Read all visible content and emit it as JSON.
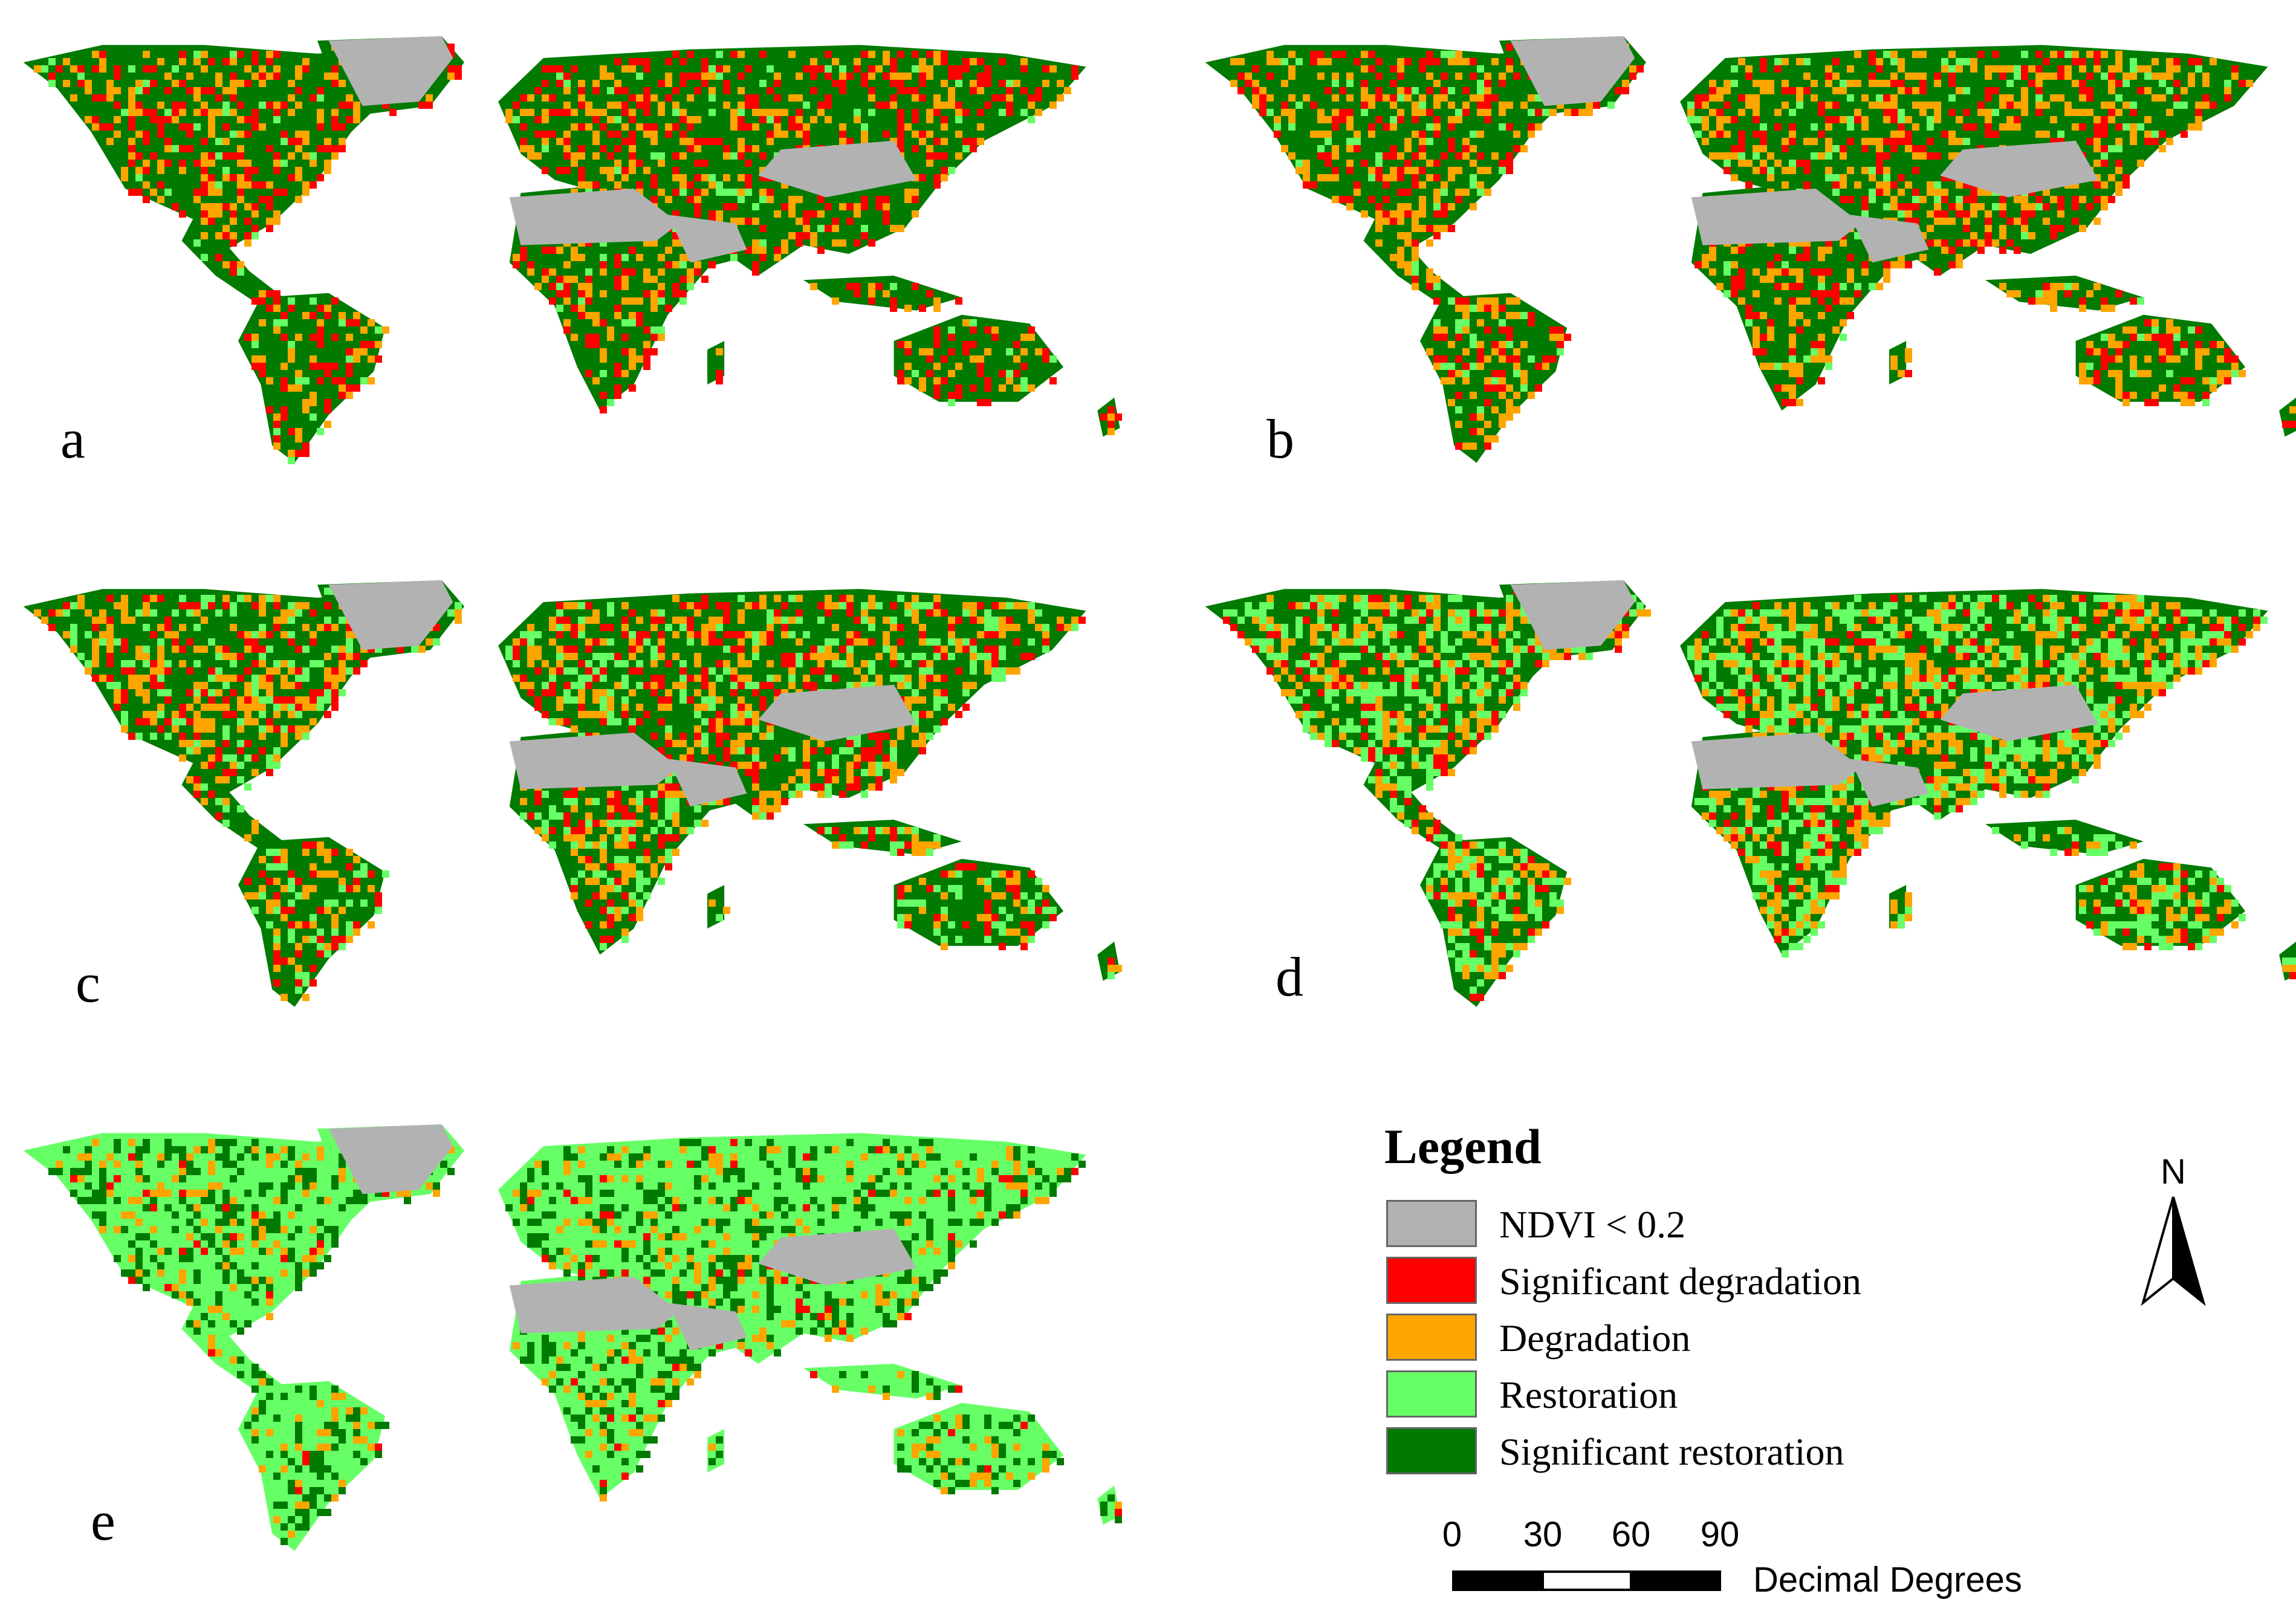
{
  "panels": [
    {
      "label": "a"
    },
    {
      "label": "b"
    },
    {
      "label": "c"
    },
    {
      "label": "d"
    },
    {
      "label": "e"
    }
  ],
  "legend": {
    "title": "Legend",
    "items": [
      {
        "label": "NDVI < 0.2",
        "color": "#b2b2b2"
      },
      {
        "label": "Significant degradation",
        "color": "#ff0000"
      },
      {
        "label": "Degradation",
        "color": "#ffa500"
      },
      {
        "label": "Restoration",
        "color": "#66ff66"
      },
      {
        "label": "Significant restoration",
        "color": "#007a00"
      }
    ]
  },
  "north_arrow": {
    "letter": "N"
  },
  "scale_bar": {
    "ticks": [
      "0",
      "30",
      "60",
      "90"
    ],
    "units": "Decimal Degrees"
  }
}
